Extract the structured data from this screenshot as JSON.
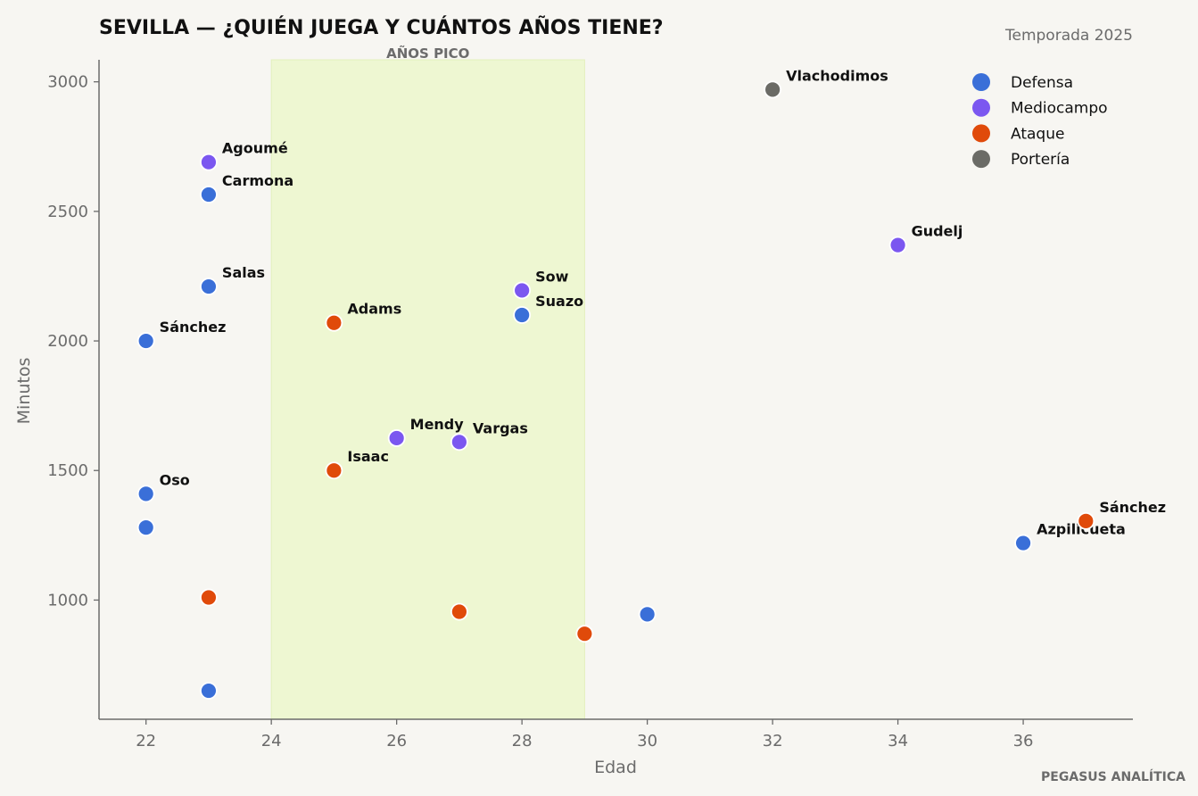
{
  "chart_data": {
    "type": "scatter",
    "title": "SEVILLA — ¿QUIÉN JUEGA Y CUÁNTOS AÑOS TIENE?",
    "subtitle": "Temporada 2025",
    "xlabel": "Edad",
    "ylabel": "Minutos",
    "xlim": [
      21.25,
      37.75
    ],
    "ylim": [
      540,
      3085
    ],
    "xticks": [
      22,
      24,
      26,
      28,
      30,
      32,
      34,
      36
    ],
    "yticks": [
      1000,
      1500,
      2000,
      2500,
      3000
    ],
    "grid": false,
    "legend_position": "top-right",
    "peak_band": {
      "label": "AÑOS PICO",
      "x_start": 24,
      "x_end": 29,
      "color": "#eef7d2"
    },
    "footer": "PEGASUS ANALÍTICA",
    "series": [
      {
        "name": "Defensa",
        "color": "#3a6fd8",
        "points": [
          {
            "x": 23,
            "y": 2565,
            "label": "Carmona"
          },
          {
            "x": 23,
            "y": 2210,
            "label": "Salas"
          },
          {
            "x": 22,
            "y": 2000,
            "label": "Sánchez"
          },
          {
            "x": 28,
            "y": 2100,
            "label": "Suazo"
          },
          {
            "x": 22,
            "y": 1410,
            "label": "Oso"
          },
          {
            "x": 22,
            "y": 1280,
            "label": ""
          },
          {
            "x": 36,
            "y": 1220,
            "label": "Azpilicueta"
          },
          {
            "x": 30,
            "y": 945,
            "label": ""
          },
          {
            "x": 23,
            "y": 650,
            "label": ""
          }
        ]
      },
      {
        "name": "Mediocampo",
        "color": "#7b57f0",
        "points": [
          {
            "x": 23,
            "y": 2690,
            "label": "Agoumé"
          },
          {
            "x": 34,
            "y": 2370,
            "label": "Gudelj"
          },
          {
            "x": 28,
            "y": 2195,
            "label": "Sow"
          },
          {
            "x": 26,
            "y": 1625,
            "label": "Mendy"
          },
          {
            "x": 27,
            "y": 1610,
            "label": "Vargas"
          }
        ]
      },
      {
        "name": "Ataque",
        "color": "#e04a0a",
        "points": [
          {
            "x": 25,
            "y": 2070,
            "label": "Adams"
          },
          {
            "x": 25,
            "y": 1500,
            "label": "Isaac"
          },
          {
            "x": 37,
            "y": 1305,
            "label": "Sánchez"
          },
          {
            "x": 23,
            "y": 1010,
            "label": ""
          },
          {
            "x": 27,
            "y": 955,
            "label": ""
          },
          {
            "x": 29,
            "y": 870,
            "label": ""
          }
        ]
      },
      {
        "name": "Portería",
        "color": "#6b6b66",
        "points": [
          {
            "x": 32,
            "y": 2970,
            "label": "Vlachodimos"
          }
        ]
      }
    ]
  }
}
